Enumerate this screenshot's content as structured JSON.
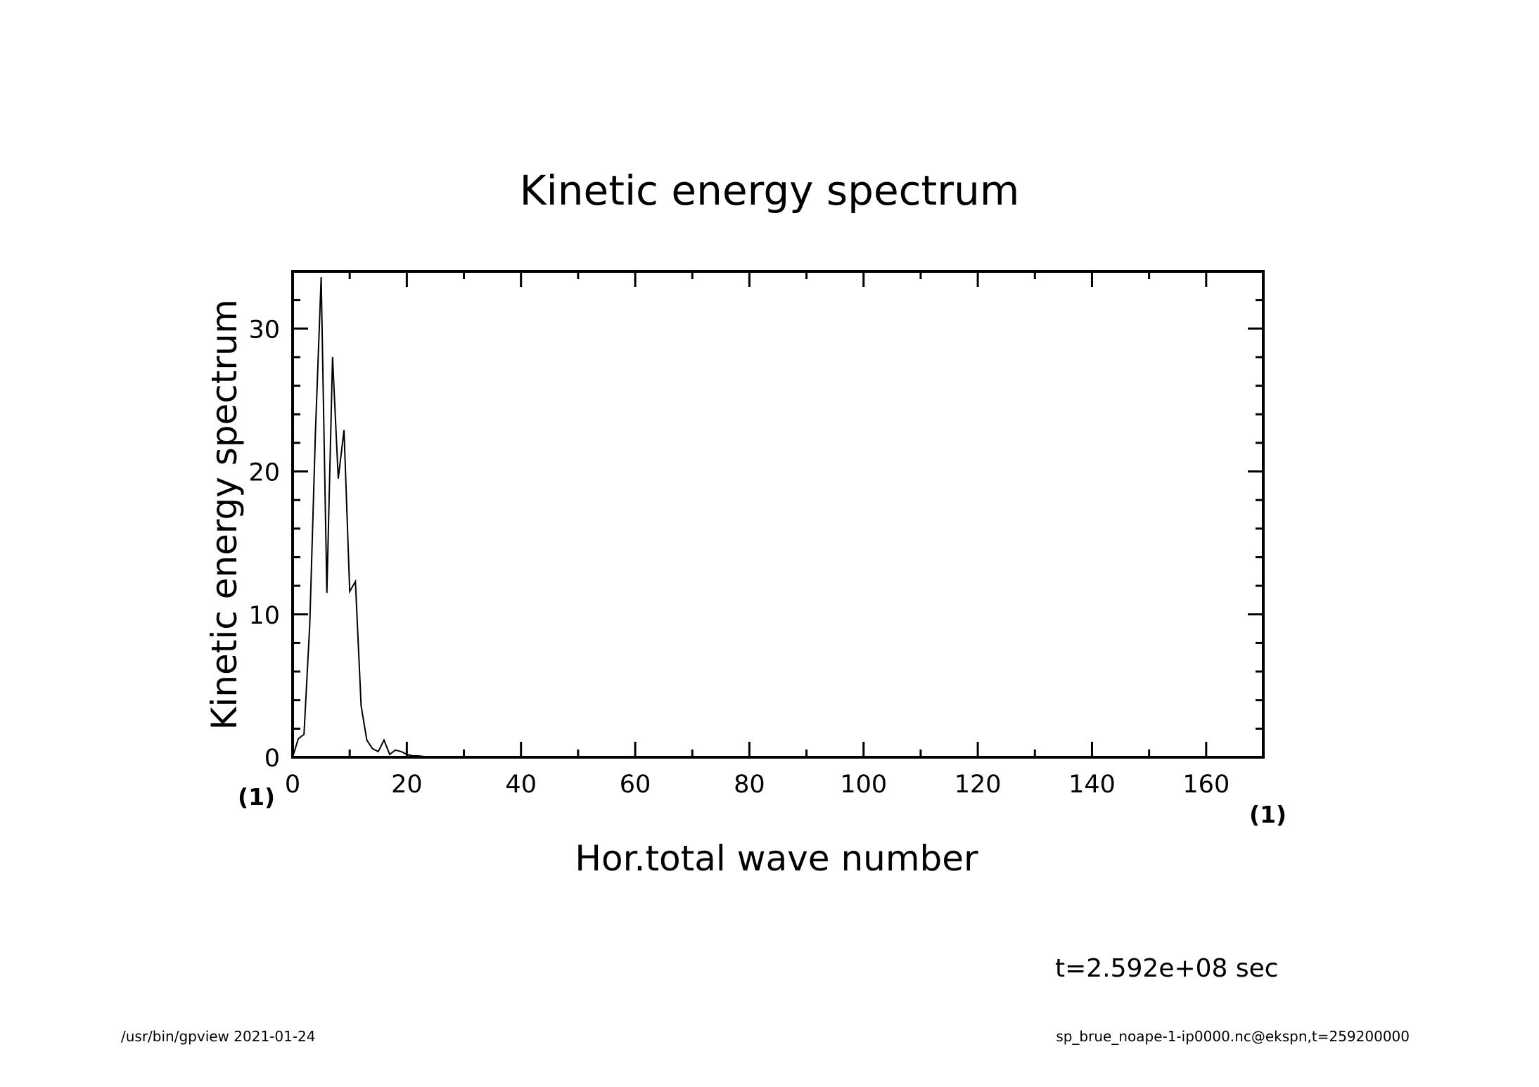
{
  "chart_data": {
    "type": "line",
    "title": "Kinetic energy spectrum",
    "xlabel": "Hor.total wave number",
    "ylabel": "Kinetic energy spectrum",
    "x_unit": "(1)",
    "y_unit": "(1)",
    "xlim": [
      0,
      170
    ],
    "ylim": [
      0,
      34
    ],
    "x_ticks": [
      0,
      20,
      40,
      60,
      80,
      100,
      120,
      140,
      160
    ],
    "x_tick_labels": [
      "0",
      "20",
      "40",
      "60",
      "80",
      "100",
      "120",
      "140",
      "160"
    ],
    "y_ticks": [
      0,
      10,
      20,
      30
    ],
    "y_tick_labels": [
      "0",
      "10",
      "20",
      "30"
    ],
    "x_minor_step": 10,
    "y_minor_step": 2,
    "grid": false,
    "legend": "none",
    "series": [
      {
        "x": [
          0,
          1,
          2,
          3,
          4,
          5,
          6,
          7,
          8,
          9,
          10,
          11,
          12,
          13,
          14,
          15,
          16,
          17,
          18,
          19,
          20,
          21,
          22,
          23,
          24,
          25,
          26,
          27,
          28,
          30,
          40,
          60,
          80,
          100,
          120,
          140,
          160,
          170
        ],
        "y": [
          0.0,
          1.3,
          1.6,
          9.3,
          22.8,
          33.6,
          11.5,
          28.0,
          19.5,
          22.9,
          11.6,
          12.3,
          3.6,
          1.2,
          0.6,
          0.4,
          1.2,
          0.2,
          0.5,
          0.4,
          0.2,
          0.1,
          0.1,
          0.05,
          0.05,
          0.03,
          0.03,
          0.02,
          0.01,
          0.01,
          0.0,
          0.0,
          0.0,
          0.0,
          0.0,
          0.0,
          0.0,
          0.0
        ]
      }
    ]
  },
  "annotations": {
    "time": "t=2.592e+08 sec",
    "footer_left": "/usr/bin/gpview   2021-01-24",
    "footer_right": "sp_brue_noape-1-ip0000.nc@ekspn,t=259200000"
  },
  "colors": {
    "line": "#000000",
    "background": "#ffffff"
  }
}
